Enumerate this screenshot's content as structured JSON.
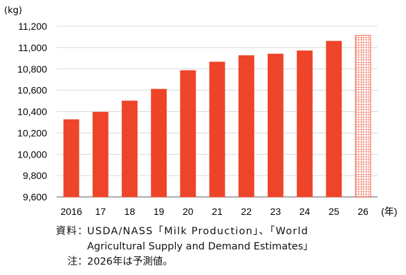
{
  "chart_data": {
    "type": "bar",
    "unit_y": "(kg)",
    "unit_x": "(年)",
    "categories": [
      "2016",
      "17",
      "18",
      "19",
      "20",
      "21",
      "22",
      "23",
      "24",
      "25",
      "26"
    ],
    "values": [
      10325,
      10395,
      10500,
      10610,
      10785,
      10865,
      10925,
      10940,
      10970,
      11060,
      11115
    ],
    "forecast_index": 10,
    "ylim": [
      9600,
      11200
    ],
    "yticks": [
      "9,600",
      "9,800",
      "10,000",
      "10,200",
      "10,400",
      "10,600",
      "10,800",
      "11,000",
      "11,200"
    ],
    "ytick_values": [
      9600,
      9800,
      10000,
      10200,
      10400,
      10600,
      10800,
      11000,
      11200
    ],
    "bar_color": "#ee4429",
    "grid": true
  },
  "notes": {
    "source_label": "資料",
    "source_text_1": "USDA/NASS「Milk Production」、「World",
    "source_text_2": "Agricultural Supply and Demand Estimates」",
    "note_label": "注",
    "note_text": "2026年は予測値。",
    "separator": "："
  }
}
